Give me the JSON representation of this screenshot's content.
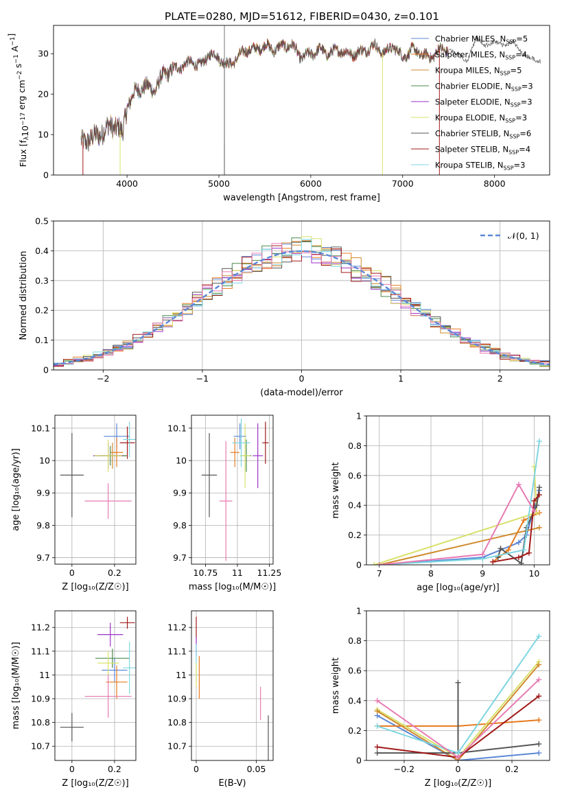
{
  "title": "PLATE=0280, MJD=51612, FIBERID=0430, z=0.101",
  "model_colors": [
    "#5b87d6",
    "#e67a1f",
    "#cf8a2c",
    "#4a8a4a",
    "#9b30c8",
    "#d8e06a",
    "#555555",
    "#a01818",
    "#7cd6e0"
  ],
  "model_colors_alt": [
    "#5b87d6",
    "#e67a1f",
    "#cf8a2c",
    "#4a8a4a",
    "#9b30c8",
    "#d8e06a",
    "#555555",
    "#a01818",
    "#7cd6e0",
    "#e87ab2"
  ],
  "chart_data": [
    {
      "id": "spectrum",
      "type": "line",
      "xlabel": "wavelength [Angstrom, rest frame]",
      "ylabel": "Flux [f_λ 10^-17 erg cm^-2 s^-1 A^-1]",
      "ylabel_parts": {
        "base": "Flux [f",
        "sub": "λ",
        "mid": "10",
        "sup1": "−17",
        "rest": " erg cm",
        "sup2": "−2",
        "rest2": " s",
        "sup3": "−1",
        "rest3": " A",
        "sup4": "−1",
        "end": "]"
      },
      "xlim": [
        3200,
        8600
      ],
      "ylim": [
        0,
        37
      ],
      "xticks": [
        4000,
        5000,
        6000,
        7000,
        8000
      ],
      "yticks": [
        0,
        10,
        20,
        30
      ],
      "grid": false,
      "legend_position": "upper-right",
      "legend": [
        {
          "base": "Chabrier MILES, N",
          "sub": "SSP",
          "tail": "=5"
        },
        {
          "base": "Salpeter MILES, N",
          "sub": "SSP",
          "tail": "=4"
        },
        {
          "base": "Kroupa MILES, N",
          "sub": "SSP",
          "tail": "=5"
        },
        {
          "base": "Chabrier ELODIE, N",
          "sub": "SSP",
          "tail": "=3"
        },
        {
          "base": "Salpeter ELODIE, N",
          "sub": "SSP",
          "tail": "=3"
        },
        {
          "base": "Kroupa ELODIE, N",
          "sub": "SSP",
          "tail": "=3"
        },
        {
          "base": "Chabrier STELIB, N",
          "sub": "SSP",
          "tail": "=6"
        },
        {
          "base": "Salpeter STELIB, N",
          "sub": "SSP",
          "tail": "=4"
        },
        {
          "base": "Kroupa STELIB, N",
          "sub": "SSP",
          "tail": "=3"
        }
      ],
      "continuum": [
        [
          3500,
          8
        ],
        [
          3600,
          9
        ],
        [
          3700,
          10
        ],
        [
          3800,
          12
        ],
        [
          3900,
          12
        ],
        [
          3950,
          10
        ],
        [
          4000,
          17
        ],
        [
          4100,
          21
        ],
        [
          4200,
          22
        ],
        [
          4300,
          21
        ],
        [
          4400,
          25
        ],
        [
          4500,
          26
        ],
        [
          4600,
          27
        ],
        [
          4700,
          28
        ],
        [
          4800,
          27
        ],
        [
          4900,
          30
        ],
        [
          5000,
          29
        ],
        [
          5100,
          27
        ],
        [
          5200,
          29
        ],
        [
          5300,
          31
        ],
        [
          5400,
          31
        ],
        [
          5500,
          32
        ],
        [
          5600,
          31
        ],
        [
          5700,
          32
        ],
        [
          5800,
          32
        ],
        [
          5900,
          29
        ],
        [
          6000,
          30
        ],
        [
          6100,
          31
        ],
        [
          6200,
          30
        ],
        [
          6300,
          31
        ],
        [
          6400,
          30
        ],
        [
          6500,
          30
        ],
        [
          6600,
          31
        ],
        [
          6700,
          32
        ],
        [
          6800,
          30
        ],
        [
          6900,
          32
        ],
        [
          7000,
          29
        ],
        [
          7100,
          31
        ],
        [
          7200,
          30
        ],
        [
          7300,
          29
        ],
        [
          7400,
          31
        ],
        [
          7500,
          31
        ]
      ],
      "extension": [
        [
          7500,
          31
        ],
        [
          7600,
          30
        ],
        [
          7700,
          28
        ],
        [
          7800,
          34
        ],
        [
          7900,
          32
        ],
        [
          8000,
          33
        ],
        [
          8100,
          32
        ],
        [
          8200,
          33
        ],
        [
          8300,
          30
        ],
        [
          8400,
          29
        ],
        [
          8500,
          28
        ]
      ],
      "drop_lines": [
        {
          "x": 3520,
          "model": 7
        },
        {
          "x": 3925,
          "model": 5
        },
        {
          "x": 5060,
          "model": 6
        },
        {
          "x": 6780,
          "model": 5
        },
        {
          "x": 7400,
          "model": 7
        }
      ]
    },
    {
      "id": "residual_hist",
      "type": "histogram",
      "xlabel": "(data-model)/error",
      "ylabel": "Normed distribution",
      "xlim": [
        -2.5,
        2.5
      ],
      "ylim": [
        0,
        0.5
      ],
      "xticks": [
        -2,
        -1,
        0,
        1,
        2
      ],
      "yticks": [
        0.0,
        0.1,
        0.2,
        0.3,
        0.4,
        0.5
      ],
      "grid": true,
      "bin_width": 0.1,
      "legend_position": "upper-right",
      "legend_label": "𝒩(0, 1)",
      "reference_curve": "standard normal, mean 0, sigma 1"
    },
    {
      "id": "age_vs_Z",
      "type": "scatter",
      "xlabel": "Z [log₁₀(Z/Z☉)]",
      "ylabel": "age  [log₁₀(age/yr)]",
      "xlim": [
        -0.08,
        0.3
      ],
      "ylim": [
        9.68,
        10.14
      ],
      "xticks": [
        0.0,
        0.2
      ],
      "yticks": [
        9.7,
        9.8,
        9.9,
        10.0,
        10.1
      ],
      "grid": true,
      "points": [
        {
          "x": 0.21,
          "y": 10.075,
          "xerr": 0.06,
          "yerr": 0.04,
          "c": 0
        },
        {
          "x": 0.21,
          "y": 10.025,
          "xerr": 0.03,
          "yerr": 0.045,
          "c": 1
        },
        {
          "x": 0.19,
          "y": 10.015,
          "xerr": 0.06,
          "yerr": 0.04,
          "c": 2
        },
        {
          "x": 0.18,
          "y": 10.015,
          "xerr": 0.08,
          "yerr": 0.03,
          "c": 3
        },
        {
          "x": 0.17,
          "y": 10.015,
          "xerr": 0.07,
          "yerr": 0.04,
          "c": 4
        },
        {
          "x": 0.17,
          "y": 10.015,
          "xerr": 0.065,
          "yerr": 0.05,
          "c": 5
        },
        {
          "x": 0.0,
          "y": 9.955,
          "xerr": 0.055,
          "yerr": 0.13,
          "c": 6
        },
        {
          "x": 0.26,
          "y": 10.055,
          "xerr": 0.035,
          "yerr": 0.05,
          "c": 7
        },
        {
          "x": 0.27,
          "y": 10.065,
          "xerr": 0.03,
          "yerr": 0.055,
          "c": 8
        },
        {
          "x": 0.17,
          "y": 9.875,
          "xerr": 0.11,
          "yerr": 0.055,
          "c": 9
        }
      ]
    },
    {
      "id": "age_vs_mass",
      "type": "scatter",
      "xlabel": "mass [log₁₀(M/M☉)]",
      "ylabel": "",
      "xlim": [
        10.64,
        11.28
      ],
      "ylim": [
        9.68,
        10.14
      ],
      "xticks": [
        10.75,
        11.0,
        11.25
      ],
      "yticks": [
        9.7,
        9.8,
        9.9,
        10.0,
        10.1
      ],
      "grid": true,
      "points": [
        {
          "x": 11.02,
          "y": 10.075,
          "xerr": 0.05,
          "yerr": 0.04,
          "c": 0
        },
        {
          "x": 10.98,
          "y": 10.025,
          "xerr": 0.035,
          "yerr": 0.045,
          "c": 1
        },
        {
          "x": 11.07,
          "y": 10.015,
          "xerr": 0.04,
          "yerr": 0.05,
          "c": 3
        },
        {
          "x": 11.16,
          "y": 10.015,
          "xerr": 0.04,
          "yerr": 0.1,
          "c": 4
        },
        {
          "x": 11.06,
          "y": 10.015,
          "xerr": 0.04,
          "yerr": 0.1,
          "c": 5
        },
        {
          "x": 10.78,
          "y": 9.955,
          "xerr": 0.06,
          "yerr": 0.13,
          "c": 6
        },
        {
          "x": 11.22,
          "y": 10.055,
          "xerr": 0.025,
          "yerr": 0.065,
          "c": 7
        },
        {
          "x": 11.03,
          "y": 10.055,
          "xerr": 0.07,
          "yerr": 0.075,
          "c": 8
        },
        {
          "x": 10.91,
          "y": 9.875,
          "xerr": 0.05,
          "yerr": 0.185,
          "c": 9
        }
      ]
    },
    {
      "id": "weight_vs_age",
      "type": "line",
      "xlabel": "age  [log₁₀(age/yr)]",
      "ylabel": "mass weight",
      "xlim": [
        6.75,
        10.3
      ],
      "ylim": [
        0,
        1.0
      ],
      "xticks": [
        7,
        8,
        9,
        10
      ],
      "yticks": [
        0.0,
        0.2,
        0.4,
        0.6,
        0.8,
        1.0
      ],
      "grid": true,
      "series": [
        {
          "c": 0,
          "points": [
            [
              7.0,
              0.0
            ],
            [
              9.0,
              0.05
            ],
            [
              9.7,
              0.15
            ],
            [
              9.85,
              0.2
            ],
            [
              10.1,
              0.5
            ]
          ]
        },
        {
          "c": 1,
          "points": [
            [
              9.2,
              0.02
            ],
            [
              9.5,
              0.1
            ],
            [
              9.8,
              0.3
            ],
            [
              10.1,
              0.35
            ]
          ]
        },
        {
          "c": 2,
          "points": [
            [
              7.0,
              0.0
            ],
            [
              10.1,
              0.25
            ]
          ]
        },
        {
          "c": 5,
          "points": [
            [
              6.9,
              0.0
            ],
            [
              10.05,
              0.35
            ],
            [
              10.0,
              0.66
            ]
          ]
        },
        {
          "c": 6,
          "points": [
            [
              9.3,
              0.05
            ],
            [
              9.35,
              0.11
            ],
            [
              9.75,
              0.01
            ],
            [
              9.85,
              0.25
            ],
            [
              10.05,
              0.4
            ],
            [
              10.1,
              0.52
            ]
          ]
        },
        {
          "c": 7,
          "points": [
            [
              9.2,
              0.02
            ],
            [
              9.7,
              0.05
            ],
            [
              9.9,
              0.08
            ],
            [
              10.0,
              0.43
            ],
            [
              10.1,
              0.47
            ]
          ]
        },
        {
          "c": 8,
          "points": [
            [
              7.0,
              0.0
            ],
            [
              9.0,
              0.04
            ],
            [
              9.8,
              0.1
            ],
            [
              10.1,
              0.83
            ]
          ]
        },
        {
          "c": 9,
          "points": [
            [
              7.0,
              0.0
            ],
            [
              9.0,
              0.07
            ],
            [
              9.7,
              0.54
            ],
            [
              10.0,
              0.36
            ]
          ]
        }
      ]
    },
    {
      "id": "mass_vs_Z",
      "type": "scatter",
      "xlabel": "Z [log₁₀(Z/Z☉)]",
      "ylabel": "mass [log₁₀(M/M☉)]",
      "xlim": [
        -0.08,
        0.3
      ],
      "ylim": [
        10.64,
        11.27
      ],
      "xticks": [
        0.0,
        0.2
      ],
      "yticks": [
        10.7,
        10.8,
        10.9,
        11.0,
        11.1,
        11.2
      ],
      "grid": true,
      "points": [
        {
          "x": 0.2,
          "y": 11.02,
          "xerr": 0.06,
          "yerr": 0.05,
          "c": 0
        },
        {
          "x": 0.21,
          "y": 10.97,
          "xerr": 0.05,
          "yerr": 0.07,
          "c": 1
        },
        {
          "x": 0.19,
          "y": 11.07,
          "xerr": 0.08,
          "yerr": 0.04,
          "c": 3
        },
        {
          "x": 0.18,
          "y": 11.17,
          "xerr": 0.06,
          "yerr": 0.05,
          "c": 4
        },
        {
          "x": 0.17,
          "y": 11.05,
          "xerr": 0.05,
          "yerr": 0.05,
          "c": 5
        },
        {
          "x": 0.0,
          "y": 10.78,
          "xerr": 0.055,
          "yerr": 0.06,
          "c": 6
        },
        {
          "x": 0.26,
          "y": 11.22,
          "xerr": 0.035,
          "yerr": 0.025,
          "c": 7
        },
        {
          "x": 0.27,
          "y": 11.03,
          "xerr": 0.03,
          "yerr": 0.11,
          "c": 8
        },
        {
          "x": 0.17,
          "y": 10.91,
          "xerr": 0.11,
          "yerr": 0.09,
          "c": 9
        }
      ]
    },
    {
      "id": "mass_vs_ebv",
      "type": "scatter",
      "xlabel": "E(B-V)",
      "ylabel": "",
      "xlim": [
        -0.004,
        0.064
      ],
      "ylim": [
        10.64,
        11.27
      ],
      "xticks": [
        0.0,
        0.05
      ],
      "yticks": [
        10.7,
        10.8,
        10.9,
        11.0,
        11.1,
        11.2
      ],
      "grid": true,
      "points": [
        {
          "x": 0.0,
          "y": 11.2,
          "xerr": 0.0,
          "yerr": 0.045,
          "c": 7
        },
        {
          "x": 0.0,
          "y": 11.12,
          "xerr": 0.0,
          "yerr": 0.04,
          "c": 4
        },
        {
          "x": 0.0,
          "y": 11.05,
          "xerr": 0.0,
          "yerr": 0.08,
          "c": 8
        },
        {
          "x": 0.0,
          "y": 11.0,
          "xerr": 0.0,
          "yerr": 0.05,
          "c": 5
        },
        {
          "x": 0.0025,
          "y": 10.99,
          "xerr": 0.0,
          "yerr": 0.09,
          "c": 1
        },
        {
          "x": 0.0535,
          "y": 10.88,
          "xerr": 0.0,
          "yerr": 0.07,
          "c": 9
        },
        {
          "x": 0.06,
          "y": 10.73,
          "xerr": 0.0,
          "yerr": 0.1,
          "c": 6
        }
      ]
    },
    {
      "id": "weight_vs_Z",
      "type": "line",
      "xlabel": "Z [log₁₀(Z/Z☉)]",
      "ylabel": "mass weight",
      "xlim": [
        -0.34,
        0.34
      ],
      "ylim": [
        0,
        1.0
      ],
      "xticks": [
        -0.2,
        0.0,
        0.2
      ],
      "yticks": [
        0.0,
        0.2,
        0.4,
        0.6,
        0.8,
        1.0
      ],
      "grid": true,
      "series": [
        {
          "c": 0,
          "points": [
            [
              -0.3,
              0.3
            ],
            [
              0.0,
              0.0
            ],
            [
              0.3,
              0.05
            ]
          ]
        },
        {
          "c": 1,
          "points": [
            [
              -0.3,
              0.23
            ],
            [
              0.0,
              0.23
            ],
            [
              0.3,
              0.27
            ]
          ]
        },
        {
          "c": 5,
          "points": [
            [
              -0.3,
              0.34
            ],
            [
              0.0,
              0.02
            ],
            [
              0.3,
              0.66
            ]
          ]
        },
        {
          "c": 2,
          "points": [
            [
              -0.3,
              0.33
            ],
            [
              0.0,
              0.0
            ],
            [
              0.3,
              0.64
            ]
          ]
        },
        {
          "c": 6,
          "points": [
            [
              -0.3,
              0.05
            ],
            [
              0.0,
              0.05
            ],
            [
              0.0,
              0.52
            ],
            [
              0.0,
              0.05
            ],
            [
              0.3,
              0.11
            ]
          ]
        },
        {
          "c": 7,
          "points": [
            [
              -0.3,
              0.09
            ],
            [
              0.0,
              0.02
            ],
            [
              0.3,
              0.43
            ]
          ]
        },
        {
          "c": 8,
          "points": [
            [
              -0.3,
              0.23
            ],
            [
              0.0,
              0.05
            ],
            [
              0.3,
              0.83
            ]
          ]
        },
        {
          "c": 9,
          "points": [
            [
              -0.3,
              0.4
            ],
            [
              0.0,
              0.02
            ],
            [
              0.3,
              0.54
            ]
          ]
        }
      ]
    }
  ]
}
